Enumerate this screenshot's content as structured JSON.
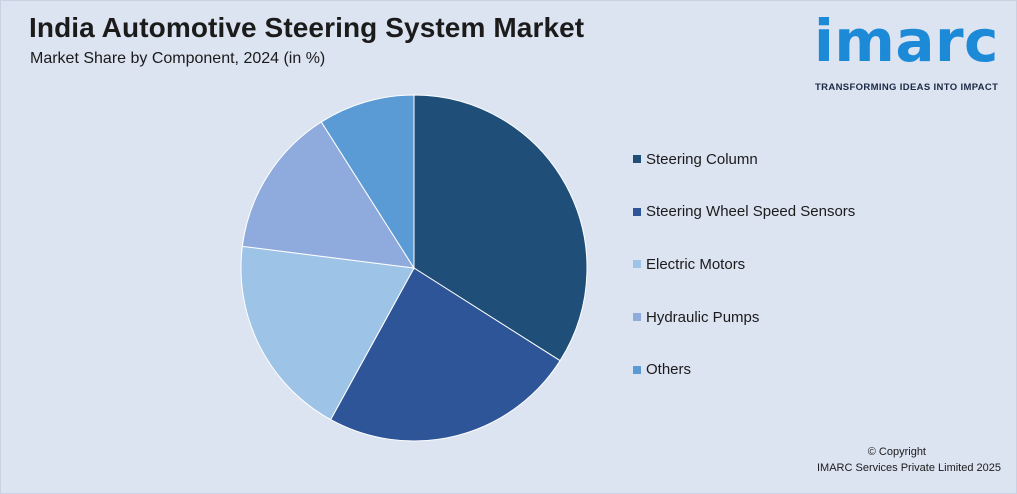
{
  "header": {
    "title": "India Automotive Steering System Market",
    "subtitle": "Market Share by Component, 2024 (in %)"
  },
  "logo": {
    "word": "imarc",
    "tagline": "TRANSFORMING IDEAS INTO IMPACT"
  },
  "footer": {
    "copyright": "© Copyright",
    "company": "IMARC Services Private Limited 2025"
  },
  "colors": {
    "background": "#dce3f1",
    "brand": "#1d8ad8"
  },
  "chart_data": {
    "type": "pie",
    "title": "India Automotive Steering System Market",
    "subtitle": "Market Share by Component, 2024 (in %)",
    "legend_position": "right",
    "slices": [
      {
        "label": "Steering Column",
        "value": 34,
        "color": "#1f4e79"
      },
      {
        "label": "Steering Wheel Speed Sensors",
        "value": 24,
        "color": "#2e5597"
      },
      {
        "label": "Electric Motors",
        "value": 19,
        "color": "#9dc3e6"
      },
      {
        "label": "Hydraulic Pumps",
        "value": 14,
        "color": "#8faadc"
      },
      {
        "label": "Others",
        "value": 9,
        "color": "#5b9bd5"
      }
    ]
  }
}
